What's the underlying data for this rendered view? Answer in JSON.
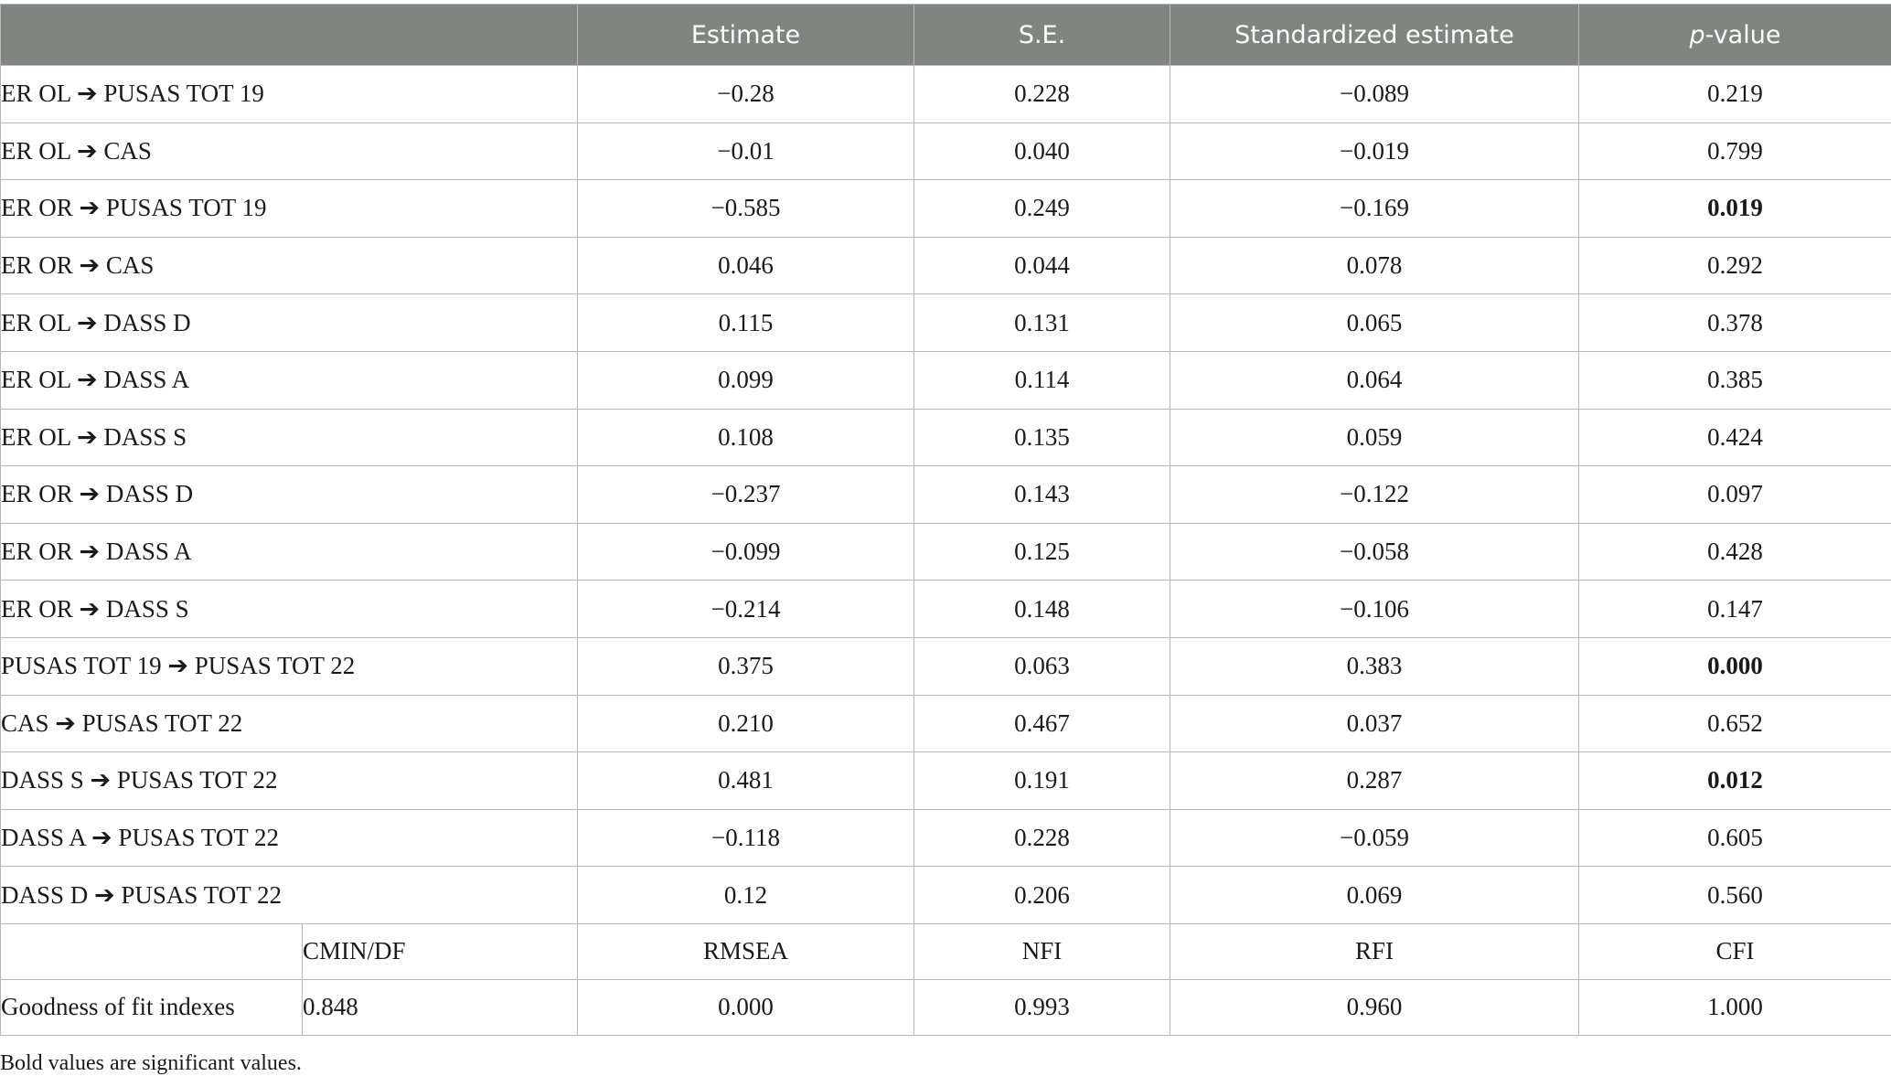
{
  "table": {
    "headers": {
      "path": "",
      "estimate": "Estimate",
      "se": "S.E.",
      "std": "Standardized estimate",
      "p_italic": "p",
      "p_rest": "-value"
    },
    "rows": [
      {
        "path": "ER OL ➔ PUSAS TOT 19",
        "estimate": "−0.28",
        "se": "0.228",
        "std": "−0.089",
        "p": "0.219",
        "sig": false
      },
      {
        "path": "ER OL ➔ CAS",
        "estimate": "−0.01",
        "se": "0.040",
        "std": "−0.019",
        "p": "0.799",
        "sig": false
      },
      {
        "path": "ER OR ➔ PUSAS TOT 19",
        "estimate": "−0.585",
        "se": "0.249",
        "std": "−0.169",
        "p": "0.019",
        "sig": true
      },
      {
        "path": "ER OR ➔ CAS",
        "estimate": "0.046",
        "se": "0.044",
        "std": "0.078",
        "p": "0.292",
        "sig": false
      },
      {
        "path": "ER OL ➔ DASS D",
        "estimate": "0.115",
        "se": "0.131",
        "std": "0.065",
        "p": "0.378",
        "sig": false
      },
      {
        "path": "ER OL ➔ DASS A",
        "estimate": "0.099",
        "se": "0.114",
        "std": "0.064",
        "p": "0.385",
        "sig": false
      },
      {
        "path": "ER OL ➔ DASS S",
        "estimate": "0.108",
        "se": "0.135",
        "std": "0.059",
        "p": "0.424",
        "sig": false
      },
      {
        "path": "ER OR ➔ DASS D",
        "estimate": "−0.237",
        "se": "0.143",
        "std": "−0.122",
        "p": "0.097",
        "sig": false
      },
      {
        "path": "ER OR ➔ DASS A",
        "estimate": "−0.099",
        "se": "0.125",
        "std": "−0.058",
        "p": "0.428",
        "sig": false
      },
      {
        "path": "ER OR ➔ DASS S",
        "estimate": "−0.214",
        "se": "0.148",
        "std": "−0.106",
        "p": "0.147",
        "sig": false
      },
      {
        "path": "PUSAS TOT 19 ➔ PUSAS TOT 22",
        "estimate": "0.375",
        "se": "0.063",
        "std": "0.383",
        "p": "0.000",
        "sig": true
      },
      {
        "path": "CAS ➔ PUSAS TOT 22",
        "estimate": "0.210",
        "se": "0.467",
        "std": "0.037",
        "p": "0.652",
        "sig": false
      },
      {
        "path": "DASS S ➔ PUSAS TOT 22",
        "estimate": "0.481",
        "se": "0.191",
        "std": "0.287",
        "p": "0.012",
        "sig": true
      },
      {
        "path": "DASS A ➔ PUSAS TOT 22",
        "estimate": "−0.118",
        "se": "0.228",
        "std": "−0.059",
        "p": "0.605",
        "sig": false
      },
      {
        "path": "DASS D ➔ PUSAS TOT 22",
        "estimate": "0.12",
        "se": "0.206",
        "std": "0.069",
        "p": "0.560",
        "sig": false
      }
    ],
    "fit_header": {
      "cmin_df": "CMIN/DF",
      "rmsea": "RMSEA",
      "nfi": "NFI",
      "rfi": "RFI",
      "cfi": "CFI"
    },
    "fit_values": {
      "label": "Goodness of fit indexes",
      "cmin_df": "0.848",
      "rmsea": "0.000",
      "nfi": "0.993",
      "rfi": "0.960",
      "cfi": "1.000"
    }
  },
  "footnote": "Bold values are significant values.",
  "colors": {
    "header_bg": "#808582",
    "header_text": "#ffffff",
    "border": "#b8b8b8"
  }
}
